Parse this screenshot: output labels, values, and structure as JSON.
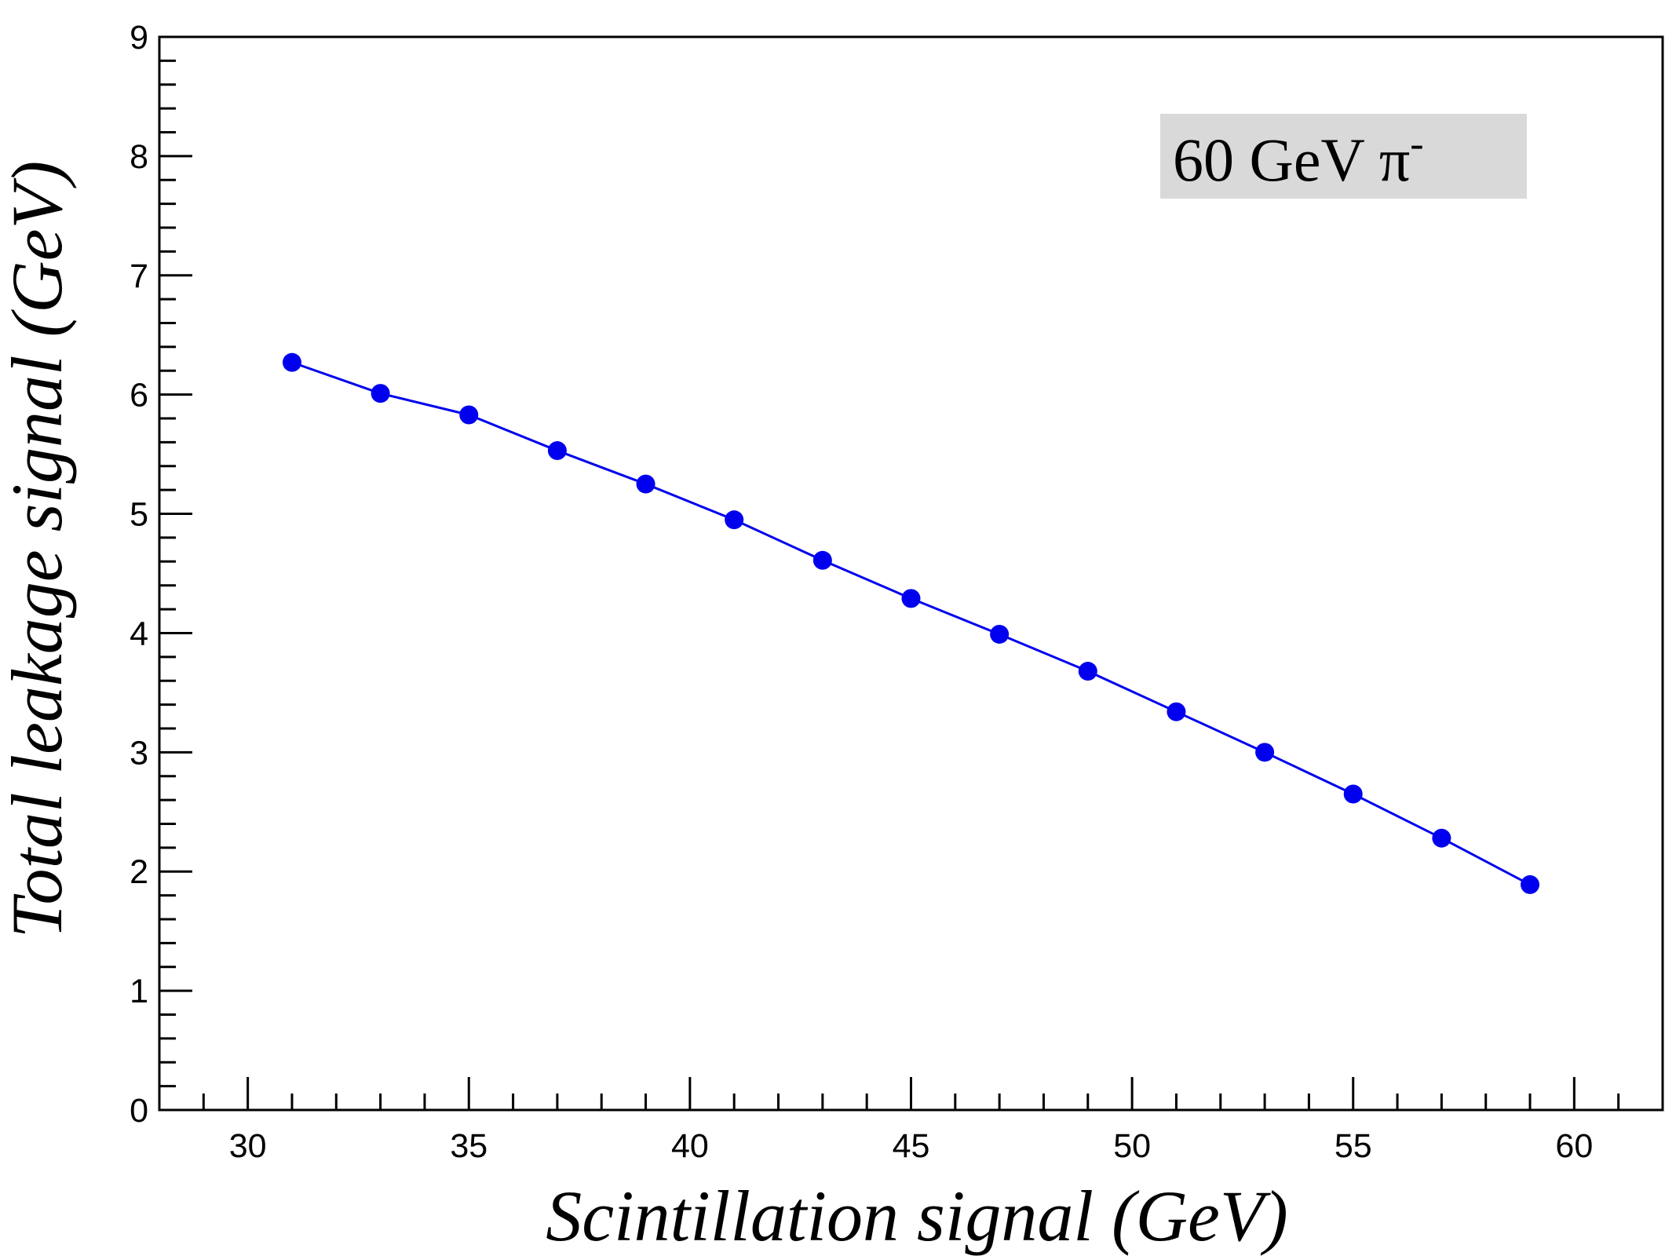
{
  "chart_data": {
    "type": "line",
    "xlabel": "Scintillation signal (GeV)",
    "ylabel": "Total leakage signal (GeV)",
    "xlim": [
      28,
      62
    ],
    "ylim": [
      0,
      9
    ],
    "x_ticks": [
      "30",
      "35",
      "40",
      "45",
      "50",
      "55",
      "60"
    ],
    "y_ticks": [
      "0",
      "1",
      "2",
      "3",
      "4",
      "5",
      "6",
      "7",
      "8",
      "9"
    ],
    "grid": false,
    "annotation": {
      "text": "60 GeV π",
      "superscript": "-"
    },
    "series": [
      {
        "color": "#0000ee",
        "marker": "circle",
        "x": [
          31,
          33,
          35,
          37,
          39,
          41,
          43,
          45,
          47,
          49,
          51,
          53,
          55,
          57,
          59
        ],
        "y": [
          6.27,
          6.01,
          5.83,
          5.53,
          5.25,
          4.95,
          4.61,
          4.29,
          3.99,
          3.68,
          3.34,
          3.0,
          2.65,
          2.28,
          1.89
        ]
      }
    ]
  }
}
